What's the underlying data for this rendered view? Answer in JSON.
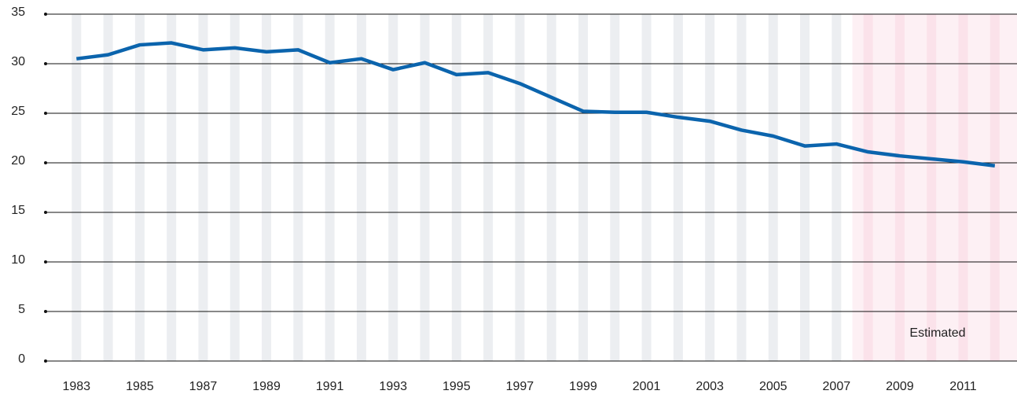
{
  "chart_data": {
    "type": "line",
    "x": [
      1983,
      1984,
      1985,
      1986,
      1987,
      1988,
      1989,
      1990,
      1991,
      1992,
      1993,
      1994,
      1995,
      1996,
      1997,
      1998,
      1999,
      2000,
      2001,
      2002,
      2003,
      2004,
      2005,
      2006,
      2007,
      2008,
      2009,
      2010,
      2011,
      2012
    ],
    "series": [
      {
        "color": "#0b64ad",
        "values": [
          30.5,
          30.9,
          31.9,
          32.1,
          31.4,
          31.6,
          31.2,
          31.4,
          30.1,
          30.5,
          29.4,
          30.1,
          28.9,
          29.1,
          28.0,
          26.6,
          25.2,
          25.1,
          25.1,
          24.6,
          24.2,
          23.3,
          22.7,
          21.7,
          21.9,
          21.1,
          20.7,
          20.4,
          20.1,
          19.7
        ]
      }
    ],
    "xlim": [
      1982,
      2012.7
    ],
    "xticks": [
      1983,
      1985,
      1987,
      1989,
      1991,
      1993,
      1995,
      1997,
      1999,
      2001,
      2003,
      2005,
      2007,
      2009,
      2011
    ],
    "ylim": [
      0,
      35
    ],
    "yticks": [
      0,
      5,
      10,
      15,
      20,
      25,
      30,
      35
    ],
    "grid": true,
    "shaded_region": {
      "from": 2007.5,
      "label": "Estimated",
      "color": "#fdf0f4"
    }
  }
}
